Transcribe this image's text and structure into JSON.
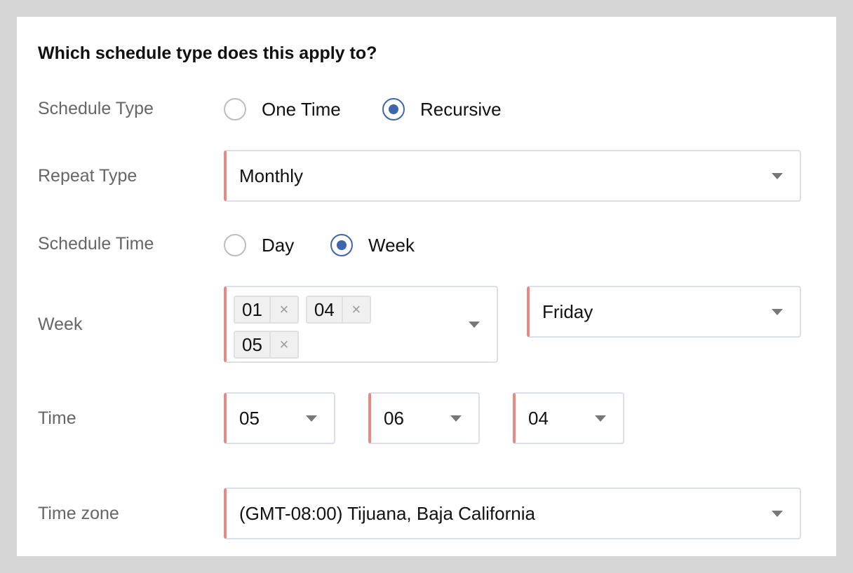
{
  "title": "Which schedule type does this apply to?",
  "schedule_type": {
    "label": "Schedule Type",
    "options": [
      "One Time",
      "Recursive"
    ],
    "selected": "Recursive"
  },
  "repeat_type": {
    "label": "Repeat Type",
    "value": "Monthly"
  },
  "schedule_time": {
    "label": "Schedule Time",
    "options": [
      "Day",
      "Week"
    ],
    "selected": "Week"
  },
  "week": {
    "label": "Week",
    "tags": [
      "01",
      "04",
      "05"
    ],
    "remove_icon": "×",
    "day": "Friday"
  },
  "time": {
    "label": "Time",
    "hour": "05",
    "minute": "06",
    "second": "04"
  },
  "timezone": {
    "label": "Time zone",
    "value": "(GMT-08:00) Tijuana, Baja California"
  },
  "colors": {
    "accent": "#3f66ad",
    "required": "#ea8a85"
  }
}
